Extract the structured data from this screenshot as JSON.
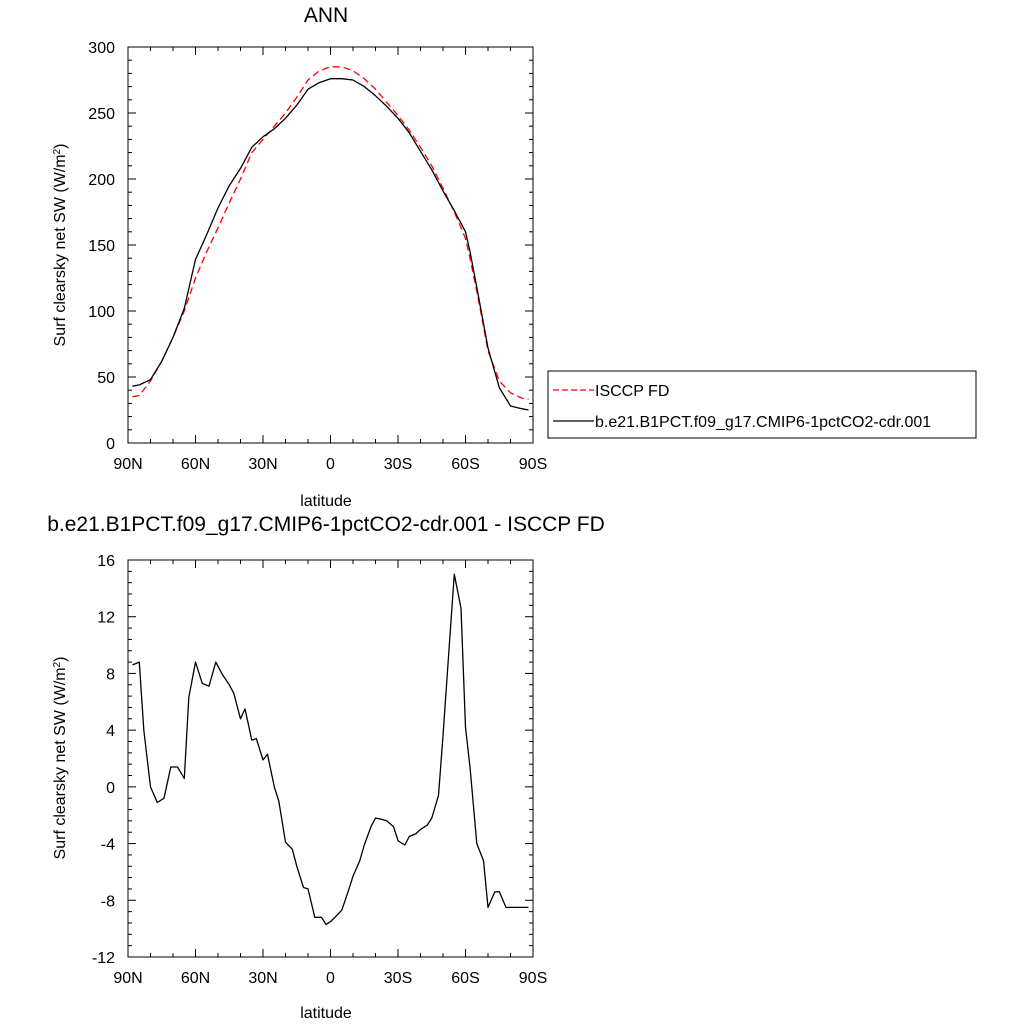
{
  "chart_data": [
    {
      "type": "line",
      "title": "ANN",
      "xlabel": "latitude",
      "ylabel": "Surf clearsky net SW (W/m²)",
      "ylabel_main": "Surf clearsky net SW (W/m",
      "ylabel_sup": "2",
      "ylabel_close": ")",
      "xlim": [
        -90,
        90
      ],
      "ylim": [
        0,
        300
      ],
      "x_ticks": [
        -90,
        -60,
        -30,
        0,
        30,
        60,
        90
      ],
      "x_tick_labels": [
        "90N",
        "60N",
        "30N",
        "0",
        "30S",
        "60S",
        "90S"
      ],
      "y_ticks": [
        0,
        50,
        100,
        150,
        200,
        250,
        300
      ],
      "y_tick_labels": [
        "0",
        "50",
        "100",
        "150",
        "200",
        "250",
        "300"
      ],
      "legend_position": "right",
      "series": [
        {
          "name": "ISCCP FD",
          "color": "#ff0000",
          "dash": "dashed",
          "x": [
            -88,
            -85,
            -80,
            -75,
            -70,
            -65,
            -60,
            -55,
            -50,
            -45,
            -40,
            -35,
            -30,
            -25,
            -20,
            -15,
            -10,
            -5,
            0,
            5,
            10,
            15,
            20,
            25,
            30,
            35,
            40,
            45,
            50,
            55,
            60,
            62,
            65,
            70,
            75,
            80,
            85,
            88
          ],
          "y": [
            35,
            36,
            47,
            62,
            80,
            100,
            125,
            145,
            163,
            182,
            200,
            220,
            230,
            240,
            250,
            262,
            275,
            282,
            285,
            285,
            282,
            276,
            268,
            258,
            248,
            237,
            224,
            210,
            193,
            175,
            155,
            140,
            115,
            70,
            47,
            38,
            34,
            33
          ]
        },
        {
          "name": "b.e21.B1PCT.f09_g17.CMIP6-1pctCO2-cdr.001",
          "color": "#000000",
          "dash": "solid",
          "x": [
            -88,
            -85,
            -80,
            -75,
            -70,
            -65,
            -60,
            -55,
            -50,
            -45,
            -40,
            -35,
            -30,
            -25,
            -20,
            -15,
            -10,
            -5,
            0,
            5,
            10,
            15,
            20,
            25,
            30,
            35,
            40,
            45,
            50,
            55,
            60,
            62,
            65,
            70,
            75,
            80,
            85,
            88
          ],
          "y": [
            43,
            44,
            48,
            62,
            80,
            102,
            139,
            158,
            178,
            195,
            208,
            224,
            232,
            238,
            246,
            256,
            268,
            273,
            276,
            276,
            275,
            270,
            263,
            255,
            246,
            235,
            221,
            207,
            191,
            176,
            160,
            145,
            118,
            72,
            42,
            28,
            26,
            25
          ]
        }
      ]
    },
    {
      "type": "line",
      "title": "b.e21.B1PCT.f09_g17.CMIP6-1pctCO2-cdr.001 - ISCCP FD",
      "xlabel": "latitude",
      "ylabel": "Surf clearsky net SW (W/m²)",
      "ylabel_main": "Surf clearsky net SW (W/m",
      "ylabel_sup": "2",
      "ylabel_close": ")",
      "xlim": [
        -90,
        90
      ],
      "ylim": [
        -12,
        16
      ],
      "x_ticks": [
        -90,
        -60,
        -30,
        0,
        30,
        60,
        90
      ],
      "x_tick_labels": [
        "90N",
        "60N",
        "30N",
        "0",
        "30S",
        "60S",
        "90S"
      ],
      "y_ticks": [
        -12,
        -8,
        -4,
        0,
        4,
        8,
        12,
        16
      ],
      "y_tick_labels": [
        "-12",
        "-8",
        "-4",
        "0",
        "4",
        "8",
        "12",
        "16"
      ],
      "series": [
        {
          "color": "#000000",
          "dash": "solid",
          "x": [
            -88,
            -85,
            -83,
            -80,
            -77,
            -74,
            -71,
            -68,
            -65,
            -63,
            -60,
            -57,
            -54,
            -51,
            -48,
            -45,
            -43,
            -40,
            -38,
            -35,
            -33,
            -30,
            -28,
            -25,
            -23,
            -20,
            -17,
            -15,
            -12,
            -10,
            -7,
            -4,
            -2,
            0,
            2,
            5,
            8,
            10,
            13,
            15,
            18,
            20,
            23,
            25,
            28,
            30,
            33,
            35,
            38,
            40,
            43,
            45,
            48,
            50,
            53,
            55,
            58,
            60,
            62,
            65,
            68,
            70,
            73,
            75,
            78,
            80,
            83,
            85,
            88
          ],
          "y": [
            8.6,
            8.8,
            4,
            0,
            -1.1,
            -0.8,
            1.4,
            1.4,
            0.6,
            6.3,
            8.8,
            7.3,
            7.1,
            8.8,
            7.9,
            7.2,
            6.6,
            4.8,
            5.5,
            3.3,
            3.4,
            1.9,
            2.3,
            0,
            -1,
            -3.9,
            -4.4,
            -5.6,
            -7.1,
            -7.2,
            -9.2,
            -9.2,
            -9.7,
            -9.5,
            -9.2,
            -8.7,
            -7.3,
            -6.3,
            -5.2,
            -4.1,
            -2.8,
            -2.2,
            -2.3,
            -2.4,
            -2.8,
            -3.8,
            -4.1,
            -3.5,
            -3.3,
            -3,
            -2.7,
            -2.2,
            -0.6,
            3.6,
            10.5,
            15.0,
            12.6,
            4.2,
            1.4,
            -4,
            -5.2,
            -8.5,
            -7.4,
            -7.4,
            -8.5,
            -8.5,
            -8.5,
            -8.5,
            -8.5
          ]
        }
      ]
    }
  ]
}
